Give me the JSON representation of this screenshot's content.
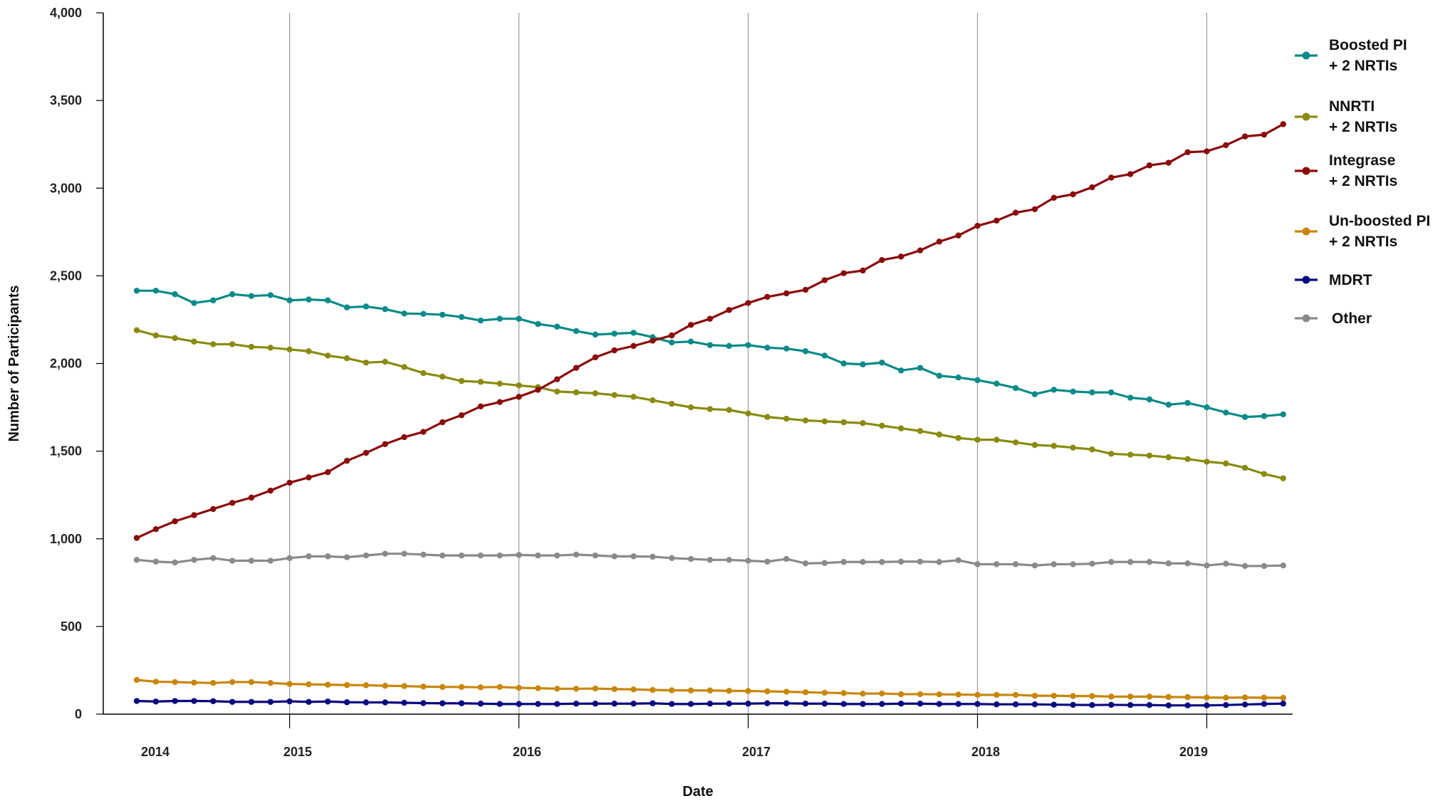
{
  "chart_data": {
    "type": "line",
    "title": "",
    "xlabel": "Date",
    "ylabel": "Number of Participants",
    "ylim": [
      0,
      4000
    ],
    "yticks": [
      0,
      500,
      1000,
      1500,
      2000,
      2500,
      3000,
      3500,
      4000
    ],
    "ytick_labels": [
      "0",
      "500",
      "1,000",
      "1,500",
      "2,000",
      "2,500",
      "3,000",
      "3,500",
      "4,000"
    ],
    "x_start": "2013-11",
    "x_end": "2019-12",
    "x_labels": [
      "2014",
      "2015",
      "2016",
      "2017",
      "2018",
      "2019"
    ],
    "year_boundaries": [
      "2014-07",
      "2015-07",
      "2016-07",
      "2017-07",
      "2018-07"
    ],
    "grid": "vertical at year boundaries",
    "legend_position": "right",
    "series": [
      {
        "name": "Boosted PI\n+ 2 NRTIs",
        "color": "#0a8a8a",
        "values": [
          2415,
          2415,
          2395,
          2345,
          2360,
          2395,
          2385,
          2390,
          2360,
          2365,
          2360,
          2320,
          2325,
          2310,
          2285,
          2283,
          2278,
          2265,
          2245,
          2255,
          2255,
          2225,
          2210,
          2185,
          2165,
          2170,
          2175,
          2150,
          2120,
          2125,
          2105,
          2100,
          2105,
          2090,
          2085,
          2070,
          2045,
          2000,
          1995,
          2005,
          1960,
          1975,
          1930,
          1920,
          1905,
          1885,
          1860,
          1825,
          1850,
          1840,
          1835,
          1835,
          1805,
          1795,
          1765,
          1775,
          1750,
          1720,
          1695,
          1700,
          1710
        ]
      },
      {
        "name": "NNRTI\n+ 2 NRTIs",
        "color": "#8a8a10",
        "values": [
          2190,
          2160,
          2145,
          2125,
          2110,
          2110,
          2095,
          2090,
          2080,
          2070,
          2045,
          2030,
          2005,
          2010,
          1980,
          1945,
          1925,
          1900,
          1895,
          1885,
          1875,
          1865,
          1840,
          1835,
          1830,
          1820,
          1810,
          1790,
          1770,
          1750,
          1740,
          1735,
          1715,
          1695,
          1685,
          1675,
          1670,
          1665,
          1660,
          1645,
          1630,
          1615,
          1595,
          1575,
          1565,
          1565,
          1550,
          1535,
          1530,
          1520,
          1510,
          1485,
          1480,
          1475,
          1465,
          1455,
          1440,
          1430,
          1405,
          1370,
          1345
        ]
      },
      {
        "name": "Integrase\n+ 2 NRTIs",
        "color": "#8b0a0a",
        "values": [
          1005,
          1055,
          1100,
          1135,
          1170,
          1205,
          1235,
          1275,
          1320,
          1350,
          1380,
          1445,
          1490,
          1540,
          1580,
          1610,
          1665,
          1705,
          1755,
          1780,
          1810,
          1850,
          1910,
          1975,
          2035,
          2075,
          2100,
          2130,
          2160,
          2220,
          2255,
          2305,
          2345,
          2380,
          2400,
          2420,
          2475,
          2515,
          2530,
          2590,
          2610,
          2645,
          2695,
          2730,
          2785,
          2815,
          2860,
          2880,
          2945,
          2965,
          3005,
          3060,
          3080,
          3130,
          3145,
          3205,
          3210,
          3245,
          3295,
          3305,
          3365
        ]
      },
      {
        "name": "Un-boosted PI\n+ 2 NRTIs",
        "color": "#c8860a",
        "values": [
          195,
          185,
          183,
          180,
          178,
          183,
          183,
          178,
          172,
          170,
          168,
          166,
          165,
          162,
          160,
          157,
          155,
          155,
          153,
          155,
          150,
          148,
          145,
          145,
          146,
          143,
          141,
          138,
          136,
          135,
          135,
          133,
          132,
          130,
          128,
          125,
          122,
          120,
          117,
          118,
          114,
          114,
          113,
          112,
          110,
          110,
          110,
          105,
          105,
          103,
          103,
          100,
          100,
          100,
          98,
          97,
          95,
          94,
          95,
          94,
          93
        ]
      },
      {
        "name": "MDRT",
        "color": "#0a0a80",
        "values": [
          75,
          72,
          75,
          75,
          74,
          70,
          70,
          70,
          73,
          70,
          72,
          68,
          67,
          67,
          65,
          63,
          62,
          62,
          60,
          58,
          58,
          58,
          58,
          60,
          60,
          60,
          60,
          62,
          58,
          58,
          60,
          60,
          60,
          62,
          62,
          60,
          60,
          58,
          58,
          58,
          60,
          60,
          58,
          58,
          58,
          56,
          56,
          56,
          54,
          53,
          52,
          53,
          52,
          52,
          50,
          50,
          50,
          52,
          55,
          58,
          60
        ]
      },
      {
        "name": "Other",
        "color": "#8a8a8a",
        "values": [
          880,
          870,
          865,
          880,
          890,
          875,
          875,
          875,
          890,
          900,
          900,
          895,
          905,
          915,
          915,
          910,
          905,
          905,
          905,
          905,
          908,
          905,
          905,
          910,
          905,
          900,
          900,
          898,
          890,
          885,
          880,
          880,
          875,
          870,
          885,
          860,
          862,
          868,
          868,
          868,
          870,
          870,
          868,
          878,
          855,
          855,
          855,
          848,
          855,
          855,
          858,
          868,
          868,
          868,
          860,
          860,
          848,
          858,
          845,
          845,
          848
        ]
      }
    ]
  }
}
